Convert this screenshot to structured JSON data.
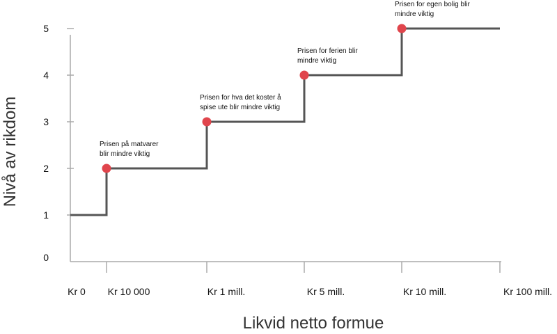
{
  "chart_data": {
    "type": "line",
    "title": "",
    "xlabel": "Likvid netto formue",
    "ylabel": "Nivå av rikdom",
    "categories": [
      "Kr 0",
      "Kr 10 000",
      "Kr 1 mill.",
      "Kr 5 mill.",
      "Kr 10 mill.",
      "Kr 100 mill."
    ],
    "yticks": [
      "0",
      "1",
      "2",
      "3",
      "4",
      "5"
    ],
    "ylim": [
      0,
      5
    ],
    "steps": [
      {
        "from": "Kr 0",
        "to": "Kr 10 000",
        "level": 1
      },
      {
        "from": "Kr 10 000",
        "to": "Kr 1 mill.",
        "level": 2
      },
      {
        "from": "Kr 1 mill.",
        "to": "Kr 5 mill.",
        "level": 3
      },
      {
        "from": "Kr 5 mill.",
        "to": "Kr 10 mill.",
        "level": 4
      },
      {
        "from": "Kr 10 mill.",
        "to": "Kr 100 mill.",
        "level": 5
      }
    ],
    "points": [
      {
        "x": "Kr 10 000",
        "y": 2,
        "annotation": [
          "Prisen på matvarer",
          "blir mindre viktig"
        ]
      },
      {
        "x": "Kr 1 mill.",
        "y": 3,
        "annotation": [
          "Prisen for hva det koster å",
          "spise ute blir mindre viktig"
        ]
      },
      {
        "x": "Kr 5 mill.",
        "y": 4,
        "annotation": [
          "Prisen for ferien blir",
          "mindre viktig"
        ]
      },
      {
        "x": "Kr 10 mill.",
        "y": 5,
        "annotation": [
          "Prisen for egen bolig blir",
          "mindre viktig"
        ]
      }
    ],
    "grid": false,
    "legend": "none",
    "colors": {
      "line": "#555555",
      "point": "#e0454c",
      "axis": "#aaaaaa"
    }
  }
}
